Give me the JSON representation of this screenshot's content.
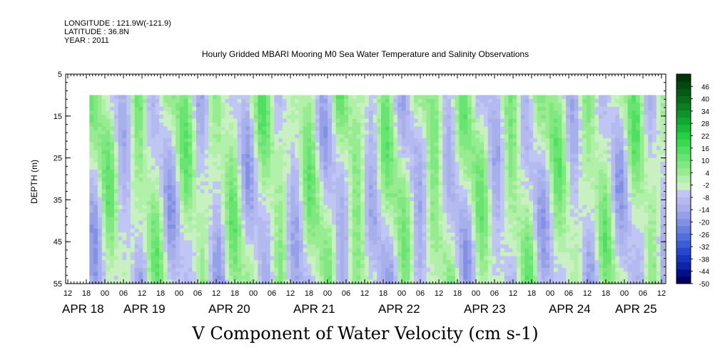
{
  "header": {
    "longitude": "LONGITUDE : 121.9W(-121.9)",
    "latitude": "LATITUDE : 36.8N",
    "year": "YEAR : 2011"
  },
  "chart_data": {
    "type": "heatmap",
    "title": "Hourly Gridded MBARI Mooring M0 Sea Water Temperature and Salinity Observations",
    "xlabel": "V Component of Water Velocity (cm s-1)",
    "ylabel": "DEPTH (m)",
    "ylim": [
      5,
      55
    ],
    "y_inverted": true,
    "y_ticks": [
      "5",
      "15",
      "25",
      "35",
      "45",
      "55"
    ],
    "x_hour_ticks": [
      "12",
      "18",
      "00",
      "06",
      "12",
      "18",
      "00",
      "06",
      "12",
      "18",
      "00",
      "06",
      "12",
      "18",
      "00",
      "06",
      "12",
      "18",
      "00",
      "06",
      "12",
      "18",
      "00",
      "06",
      "12",
      "18",
      "00",
      "06",
      "12",
      "18",
      "00",
      "06",
      "12"
    ],
    "x_day_labels": [
      "APR 18",
      "APR 19",
      "APR 20",
      "APR 21",
      "APR 22",
      "APR 23",
      "APR 24",
      "APR 25"
    ],
    "data_extent": {
      "time_start": "APR 18 19:00",
      "time_end": "APR 25 13:00",
      "depth_top": 10,
      "depth_bottom": 55
    },
    "colorbar": {
      "labels": [
        "46",
        "40",
        "34",
        "28",
        "22",
        "16",
        "10",
        "4",
        "-2",
        "-8",
        "-14",
        "-20",
        "-26",
        "-32",
        "-38",
        "-44",
        "-50"
      ],
      "min": -50,
      "max": 52,
      "step": 3,
      "colors_negative": [
        "#000066",
        "#04108a",
        "#0a25a8",
        "#1535c0",
        "#2448d0",
        "#3a5ed8",
        "#5270dc",
        "#6a80e0",
        "#8090e4",
        "#96a0e8",
        "#a8b0ec",
        "#b4baf0",
        "#c0c6f4"
      ],
      "colors_positive": [
        "#c8f0c0",
        "#b0f0a8",
        "#98ec90",
        "#80e880",
        "#68e470",
        "#50e060",
        "#38da50",
        "#22d040",
        "#18bc38",
        "#10a830",
        "#0c9428",
        "#088020",
        "#066c1a",
        "#045a14",
        "#03480e",
        "#023608"
      ]
    },
    "field_pattern": "alternating green (positive, northward) and blue (negative, southward) bands tilted in time across depth; mostly within -14 to +16 cm/s"
  }
}
